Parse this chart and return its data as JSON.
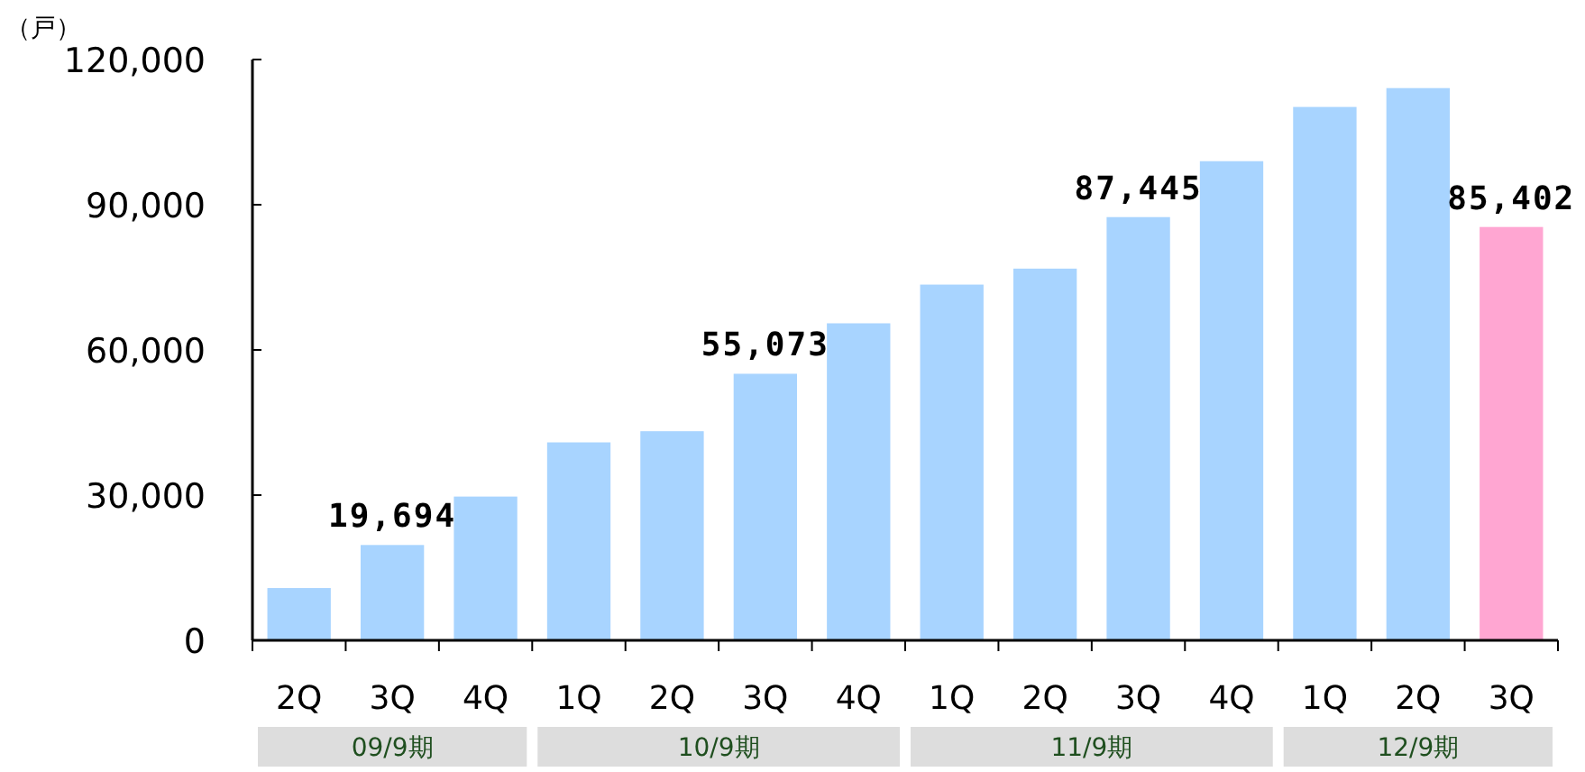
{
  "chart_data": {
    "type": "bar",
    "ylabel": "（戸）",
    "categories": [
      "2Q",
      "3Q",
      "4Q",
      "1Q",
      "2Q",
      "3Q",
      "4Q",
      "1Q",
      "2Q",
      "3Q",
      "4Q",
      "1Q",
      "2Q",
      "3Q"
    ],
    "values": [
      10800,
      19694,
      29700,
      40900,
      43200,
      55073,
      65500,
      73500,
      76800,
      87445,
      99000,
      110200,
      114100,
      85402
    ],
    "value_labels": [
      null,
      "19,694",
      null,
      null,
      null,
      "55,073",
      null,
      null,
      null,
      "87,445",
      null,
      null,
      null,
      "85,402"
    ],
    "colors": [
      "#a8d4ff",
      "#a8d4ff",
      "#a8d4ff",
      "#a8d4ff",
      "#a8d4ff",
      "#a8d4ff",
      "#a8d4ff",
      "#a8d4ff",
      "#a8d4ff",
      "#a8d4ff",
      "#a8d4ff",
      "#a8d4ff",
      "#a8d4ff",
      "#ffa6d2"
    ],
    "ylim": [
      0,
      120000
    ],
    "yticks": [
      {
        "value": 0,
        "label": "0"
      },
      {
        "value": 30000,
        "label": "30,000"
      },
      {
        "value": 60000,
        "label": "60,000"
      },
      {
        "value": 90000,
        "label": "90,000"
      },
      {
        "value": 120000,
        "label": "120,000"
      }
    ],
    "annotations": [
      "09/9期",
      "10/9期",
      "11/9期",
      "12/9期"
    ],
    "grid": false
  }
}
